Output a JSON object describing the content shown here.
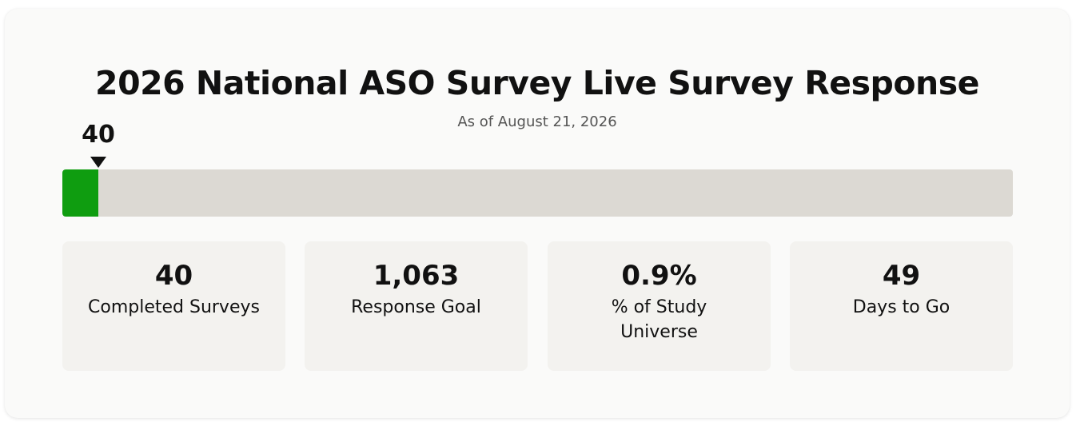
{
  "header": {
    "title": "2026 National ASO Survey Live Survey Response",
    "subtitle": "As of August 21, 2026"
  },
  "progress": {
    "current_label": "40",
    "current": 40,
    "goal": 1063,
    "fill_color": "#0f9d10",
    "track_color": "#dcd9d3"
  },
  "stats": [
    {
      "value": "40",
      "label": "Completed Surveys"
    },
    {
      "value": "1,063",
      "label": "Response Goal"
    },
    {
      "value": "0.9%",
      "label": "% of Study Universe"
    },
    {
      "value": "49",
      "label": "Days to Go"
    }
  ]
}
